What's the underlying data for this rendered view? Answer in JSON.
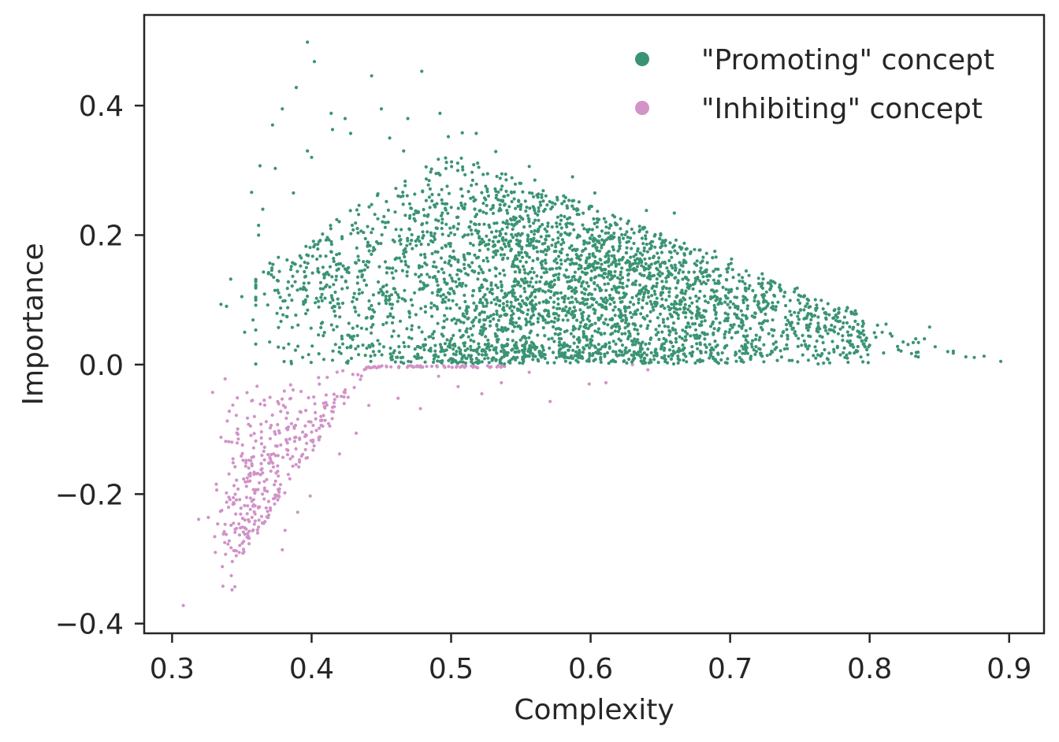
{
  "chart_data": {
    "type": "scatter",
    "title": "",
    "xlabel": "Complexity",
    "ylabel": "Importance",
    "xlim": [
      0.28,
      0.925
    ],
    "ylim": [
      -0.415,
      0.54
    ],
    "xticks": [
      0.3,
      0.4,
      0.5,
      0.6,
      0.7,
      0.8,
      0.9
    ],
    "xtick_labels": [
      "0.3",
      "0.4",
      "0.5",
      "0.6",
      "0.7",
      "0.8",
      "0.9"
    ],
    "yticks": [
      -0.4,
      -0.2,
      0.0,
      0.2,
      0.4
    ],
    "ytick_labels": [
      "−0.4",
      "−0.2",
      "0.0",
      "0.2",
      "0.4"
    ],
    "grid": false,
    "legend_position": "top-right",
    "series": [
      {
        "name": "\"Promoting\" concept",
        "color": "#3a9473",
        "approx_count": 3500,
        "description": "positive importance; complexity mostly 0.36-0.90, densest around 0.55-0.65",
        "points": [
          [
            0.397,
            0.498
          ],
          [
            0.402,
            0.468
          ],
          [
            0.443,
            0.446
          ],
          [
            0.479,
            0.453
          ],
          [
            0.389,
            0.428
          ],
          [
            0.45,
            0.395
          ],
          [
            0.379,
            0.395
          ],
          [
            0.414,
            0.388
          ],
          [
            0.424,
            0.38
          ],
          [
            0.492,
            0.388
          ],
          [
            0.469,
            0.38
          ],
          [
            0.372,
            0.37
          ],
          [
            0.415,
            0.363
          ],
          [
            0.428,
            0.357
          ],
          [
            0.508,
            0.358
          ],
          [
            0.518,
            0.357
          ],
          [
            0.498,
            0.352
          ],
          [
            0.456,
            0.35
          ],
          [
            0.466,
            0.33
          ],
          [
            0.397,
            0.33
          ],
          [
            0.532,
            0.329
          ],
          [
            0.4,
            0.32
          ],
          [
            0.363,
            0.307
          ],
          [
            0.374,
            0.303
          ],
          [
            0.556,
            0.306
          ],
          [
            0.486,
            0.302
          ],
          [
            0.515,
            0.297
          ],
          [
            0.56,
            0.285
          ],
          [
            0.357,
            0.266
          ],
          [
            0.365,
            0.24
          ],
          [
            0.362,
            0.215
          ],
          [
            0.362,
            0.2
          ],
          [
            0.387,
            0.265
          ],
          [
            0.603,
            0.265
          ],
          [
            0.587,
            0.29
          ],
          [
            0.64,
            0.238
          ],
          [
            0.66,
            0.234
          ],
          [
            0.657,
            0.188
          ],
          [
            0.689,
            0.175
          ],
          [
            0.701,
            0.163
          ],
          [
            0.335,
            0.093
          ],
          [
            0.339,
            0.09
          ],
          [
            0.35,
            0.105
          ],
          [
            0.358,
            0.069
          ],
          [
            0.352,
            0.05
          ],
          [
            0.36,
            0.001
          ],
          [
            0.342,
            0.132
          ],
          [
            0.736,
            0.117
          ],
          [
            0.743,
            0.099
          ],
          [
            0.754,
            0.09
          ],
          [
            0.762,
            0.092
          ],
          [
            0.771,
            0.077
          ],
          [
            0.784,
            0.088
          ],
          [
            0.77,
            0.048
          ],
          [
            0.788,
            0.055
          ],
          [
            0.8,
            0.03
          ],
          [
            0.809,
            0.05
          ],
          [
            0.816,
            0.044
          ],
          [
            0.824,
            0.035
          ],
          [
            0.835,
            0.034
          ],
          [
            0.843,
            0.058
          ],
          [
            0.856,
            0.02
          ],
          [
            0.869,
            0.012
          ],
          [
            0.875,
            0.011
          ],
          [
            0.882,
            0.013
          ],
          [
            0.894,
            0.005
          ],
          [
            0.833,
            0.013
          ],
          [
            0.82,
            0.028
          ],
          [
            0.81,
            0.018
          ],
          [
            0.798,
            0.023
          ],
          [
            0.789,
            0.018
          ],
          [
            0.779,
            0.015
          ]
        ]
      },
      {
        "name": "\"Inhibiting\" concept",
        "color": "#d193c8",
        "approx_count": 450,
        "description": "negative importance; complexity mostly 0.31-0.62",
        "points": [
          [
            0.308,
            -0.372
          ],
          [
            0.319,
            -0.239
          ],
          [
            0.326,
            -0.236
          ],
          [
            0.329,
            -0.043
          ],
          [
            0.331,
            -0.29
          ],
          [
            0.336,
            -0.312
          ],
          [
            0.338,
            -0.022
          ],
          [
            0.341,
            -0.072
          ],
          [
            0.343,
            -0.348
          ],
          [
            0.345,
            -0.343
          ],
          [
            0.352,
            -0.252
          ],
          [
            0.356,
            -0.172
          ],
          [
            0.36,
            -0.118
          ],
          [
            0.366,
            -0.055
          ],
          [
            0.371,
            -0.094
          ],
          [
            0.379,
            -0.286
          ],
          [
            0.381,
            -0.256
          ],
          [
            0.39,
            -0.228
          ],
          [
            0.399,
            -0.203
          ],
          [
            0.405,
            -0.02
          ],
          [
            0.42,
            -0.138
          ],
          [
            0.432,
            -0.106
          ],
          [
            0.441,
            -0.063
          ],
          [
            0.462,
            -0.052
          ],
          [
            0.478,
            -0.068
          ],
          [
            0.491,
            -0.018
          ],
          [
            0.505,
            -0.034
          ],
          [
            0.522,
            -0.045
          ],
          [
            0.536,
            -0.028
          ],
          [
            0.556,
            -0.012
          ],
          [
            0.571,
            -0.057
          ],
          [
            0.599,
            -0.03
          ],
          [
            0.611,
            -0.028
          ],
          [
            0.63,
            0.0
          ],
          [
            0.641,
            -0.008
          ]
        ]
      }
    ]
  }
}
